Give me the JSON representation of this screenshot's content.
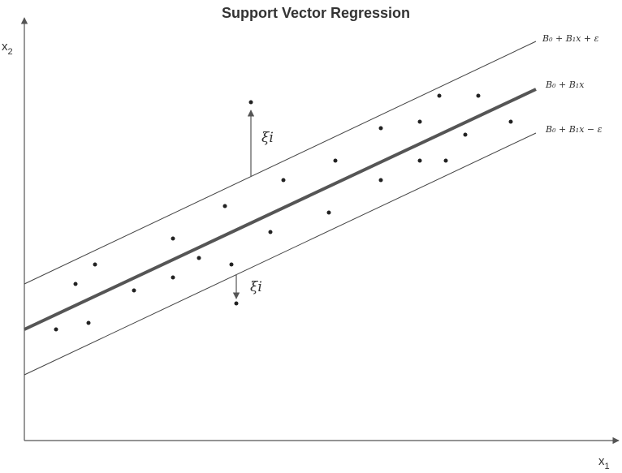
{
  "title": "Support Vector Regression",
  "axes": {
    "x_label": "x",
    "x_subscript": "1",
    "y_label": "x",
    "y_subscript": "2"
  },
  "lines": {
    "upper_label": "B₀ + B₁x + ε",
    "center_label": "B₀ + B₁x",
    "lower_label": "B₀ + B₁x − ε"
  },
  "slack": {
    "upper_label": "ξi",
    "lower_label": "ξi"
  },
  "colors": {
    "axis": "#555555",
    "regression_line": "#555555",
    "margin_lines": "#444444",
    "points": "#222222",
    "arrows": "#555555"
  }
}
